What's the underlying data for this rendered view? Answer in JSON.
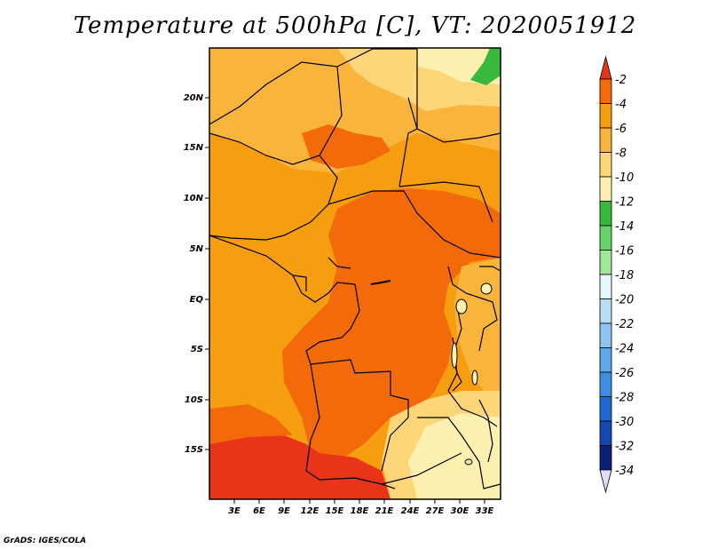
{
  "title": "Temperature at 500hPa [C], VT: 2020051912",
  "credit": "GrADS: IGES/COLA",
  "lat_labels": [
    "20N",
    "15N",
    "10N",
    "5N",
    "EQ",
    "5S",
    "10S",
    "15S"
  ],
  "lon_labels": [
    "3E",
    "6E",
    "9E",
    "12E",
    "15E",
    "18E",
    "21E",
    "24E",
    "27E",
    "30E",
    "33E"
  ],
  "colorbar": {
    "labels": [
      "-2",
      "-4",
      "-6",
      "-8",
      "-10",
      "-12",
      "-14",
      "-16",
      "-18",
      "-20",
      "-22",
      "-24",
      "-26",
      "-28",
      "-30",
      "-32",
      "-34"
    ],
    "colors": [
      "#e8351a",
      "#f26a0a",
      "#f79d10",
      "#f9b43c",
      "#fdd67a",
      "#fdf0b0",
      "#36b93c",
      "#66d46a",
      "#a0e89a",
      "#e4f7fb",
      "#b6dcf6",
      "#8fc3f1",
      "#5ea8ec",
      "#3e8de1",
      "#2069d2",
      "#1446b4",
      "#0b1f74",
      "#dedefa"
    ],
    "unit": "C"
  },
  "colors": {
    "dark_red": "#e8351a",
    "red_orange": "#f26a0a",
    "orange": "#f79d10",
    "light_orange": "#f9b43c",
    "pale_yellow": "#fdd67a",
    "cream": "#fdf0b0",
    "green": "#36b93c"
  }
}
